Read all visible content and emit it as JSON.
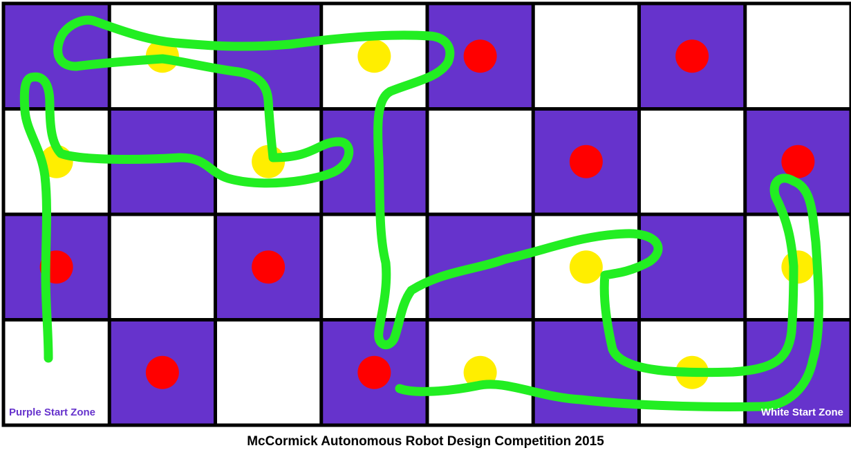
{
  "board": {
    "rows": 4,
    "cols": 8,
    "colors": {
      "purple": "#6633cc",
      "white": "#ffffff",
      "grid_line": "#000000",
      "path": "#22ee22",
      "goal_dot": "#ff0000",
      "target_dot": "#ffee00"
    },
    "cells": [
      [
        "purple",
        "white",
        "purple",
        "white",
        "purple",
        "white",
        "purple",
        "white"
      ],
      [
        "white",
        "purple",
        "white",
        "purple",
        "white",
        "purple",
        "white",
        "purple"
      ],
      [
        "purple",
        "white",
        "purple",
        "white",
        "purple",
        "white",
        "purple",
        "white"
      ],
      [
        "white",
        "purple",
        "white",
        "purple",
        "white",
        "purple",
        "white",
        "purple"
      ]
    ],
    "red_dots": [
      [
        0,
        4
      ],
      [
        0,
        6
      ],
      [
        1,
        5
      ],
      [
        1,
        7
      ],
      [
        2,
        0
      ],
      [
        2,
        2
      ],
      [
        3,
        1
      ],
      [
        3,
        3
      ]
    ],
    "yellow_dots": [
      [
        0,
        1
      ],
      [
        0,
        3
      ],
      [
        1,
        0
      ],
      [
        1,
        2
      ],
      [
        2,
        5
      ],
      [
        2,
        7
      ],
      [
        3,
        4
      ],
      [
        3,
        6
      ]
    ]
  },
  "start_zones": {
    "purple_label": "Purple Start Zone",
    "purple_color": "#6633cc",
    "white_label": "White Start Zone",
    "white_color": "#ffffff"
  },
  "caption": "McCormick Autonomous Robot Design Competition 2015"
}
